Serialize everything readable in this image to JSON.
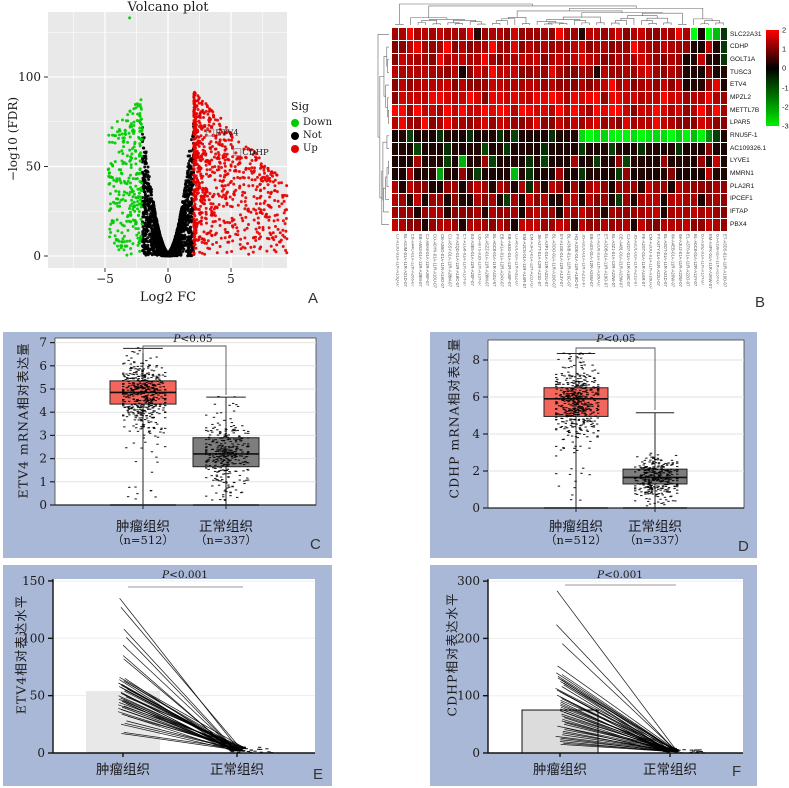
{
  "colors": {
    "panel_bg": "#aab8d8",
    "volcano_bg": "#e9e9e9",
    "grid_white": "#ffffff",
    "down_green": "#00cc00",
    "not_black": "#000000",
    "up_red": "#e60000",
    "box_red": "#f4655c",
    "box_gray": "#7d7d7d",
    "bar_e": "#e8e8e8",
    "bar_f": "#dcdcdc"
  },
  "chart_data": [
    {
      "panel_label": "A",
      "type": "scatter",
      "title": "Volcano plot",
      "xlabel": "Log2 FC",
      "ylabel": "−log10 (FDR)",
      "x_ticks": [
        -5,
        0,
        5
      ],
      "y_ticks": [
        0,
        50,
        100
      ],
      "xlim": [
        -9.5,
        9.4
      ],
      "ylim": [
        0,
        137
      ],
      "legend": {
        "title": "Sig",
        "items": [
          {
            "label": "Down",
            "color": "#00cc00"
          },
          {
            "label": "Not",
            "color": "#000000"
          },
          {
            "label": "Up",
            "color": "#e60000"
          }
        ]
      },
      "labeled_points": [
        {
          "name": "ETV4",
          "log2fc": 3.35,
          "neg_log10_fdr": 69
        },
        {
          "name": "CDHP",
          "log2fc": 5.5,
          "neg_log10_fdr": 58
        }
      ],
      "outlier_down": {
        "log2fc": -3.05,
        "neg_log10_fdr": 133
      },
      "point_counts": {
        "not": 2350,
        "down": 290,
        "up": 840
      }
    },
    {
      "panel_label": "B",
      "type": "heatmap",
      "row_labels": [
        "SLC22A31",
        "CDHP",
        "GOLT1A",
        "TUSC3",
        "ETV4",
        "MPZL2",
        "METTL7B",
        "LPAR5",
        "RNU5F-1",
        "AC109326.1",
        "LYVE1",
        "MMRN1",
        "PLA2R1",
        "IPCEF1",
        "IFTAP",
        "PBX4"
      ],
      "col_labels": [
        "CJ-A13O-01A-11R-A13Q-07",
        "BL-A3JM-01A-11R-A21D-07",
        "EB-A44O-01A-12R-A266-07",
        "EB-A553-01A-11R-A28M-07",
        "CJ-A8A9-01A-11R-A36F-07",
        "CU-A0YN-01A-11R-A10U-07",
        "CB-A3BO-01A-11R-A19O-07",
        "CJ-A5SY-01A-11R-A28M-07",
        "FY-A2QD-01A-11R-A18C-07",
        "EY-A1G8-01A-11R-A13Y-07",
        "E3-A3E5-01A-11R-A20F-07",
        "CB-A0T5-01B-11R-A13Y-07",
        "BL-A5ZZ-01A-11R-A28M-07",
        "BL-A0C8-01A-11R-A10U-07",
        "EB-A41A-01A-12R-A24X-07",
        "KB-A93G-01A-11R-A36F-07",
        "CJ-A6UL-01A-11R-A32Z-07",
        "EM-A2CN-01A-11R-A16R-07",
        "EM-A3FQ-01A-11R-A21D-07",
        "JB-A2YT-01A-12R-A21D-07",
        "EL-A3P1-01A-12R-A22U-07",
        "BL-A3OO-01A-11R-A19O-07",
        "EY-A1GE-01A-11R-A13Y-07",
        "BL-A3NB-01A-11R-A16C-07",
        "HQ-A2OE-01A-11R-A18O-07",
        "JB-A2OO-01A-11R-A21D-07",
        "EB-A4IS-01A-12R-A26W-07",
        "ET-A2O6-01A-11R-A18O-07",
        "ET-A3OB-01A-11R-A19O-07",
        "BL-A3Z1-01A-12R-A22W-07",
        "CE-A481-01A-21R-A23W-07",
        "CJ-A2O7-01A-11R-A18C-07",
        "JB-A2O1-01A-11R-A21D-07",
        "FE-A2ST-01A-11R-A16R-07",
        "EM-A2OO-01A-11R-A18O-07",
        "FY-A3TY-01A-11R-A22U-07",
        "BL-A3OT-01A-11R-A21D-07",
        "IM-A4EB-01A-11R-A26W-07",
        "IM-A3U2-01A-11R-A22W-07",
        "EL-A3T6-01A-11R-A22O-07",
        "BL-A0C8-01A-12R-A13Y-07",
        "BJ-A18Z-01A-11R-A13Y-07",
        "EM-A4FK-01A-11R-A26W-07",
        "BJ-A190-01A-11R-A13Y-07",
        "ET-A3DS-01A-11R-A19O-07"
      ],
      "colorbar_ticks": [
        "2",
        "1",
        "0",
        "-1",
        "-2",
        "-3"
      ],
      "value_levels": {
        "0": -3,
        "1": -2,
        "2": -1,
        "3": 0,
        "4": 1,
        "5": 2
      },
      "matrix_encoded": [
        "4454445444534444544444544344445444444454",
        "4445444544444544544444444544444454444444",
        "4544445444445444444544444544444445444443",
        "4444544443444544444445444443444444544443",
        "4444444544444544444444444444454444444443",
        "4555455545554555554555545555455554555554",
        "5545554555455555455554555545555545555454",
        "4544544544445454444544544445444544454444",
        "3323332333233323233332333000000000000000",
        "3332333233332332333323333233323332333323",
        "3334333231334233332323334332334233334333",
        "3343331334323333132333433233332433333433",
        "4344433443444344342434434344434443444344",
        "4434344343344432434443344344432434443444",
        "4443444344443444434444344444344444443444",
        "4444344443444444344444443444444434444444"
      ],
      "matrix_row_tails": [
        "03012",
        "33432",
        "34332",
        "33433",
        "33453",
        "44544",
        "45454",
        "45444",
        "00123",
        "33433",
        "34343",
        "33433",
        "44444",
        "43444",
        "44444",
        "44444"
      ]
    },
    {
      "panel_label": "C",
      "type": "box",
      "ylabel": "ETV4 mRNA相对表达量",
      "y_ticks": [
        0,
        1,
        2,
        3,
        4,
        5,
        6,
        7
      ],
      "ylim": [
        0,
        7.2
      ],
      "p_italic": "P",
      "p_rest": "<0.05",
      "groups": [
        {
          "label": "肿瘤组织",
          "n_label": "（n=512）",
          "n": 512,
          "box_color": "#f4655c",
          "q1": 4.35,
          "median": 4.85,
          "q3": 5.35,
          "whisker_low": 0,
          "whisker_high": 6.75,
          "points_mean": 4.85,
          "points_sd": 0.78
        },
        {
          "label": "正常组织",
          "n_label": "（n=337）",
          "n": 337,
          "box_color": "#7d7d7d",
          "q1": 1.65,
          "median": 2.2,
          "q3": 2.9,
          "whisker_low": 0,
          "whisker_high": 4.65,
          "points_mean": 2.25,
          "points_sd": 0.8
        }
      ]
    },
    {
      "panel_label": "D",
      "type": "box",
      "ylabel": "CDHP mRNA相对表达量",
      "y_ticks": [
        0,
        2,
        4,
        6,
        8
      ],
      "ylim": [
        0,
        8.9
      ],
      "p_italic": "P",
      "p_rest": "<0.05",
      "groups": [
        {
          "label": "肿瘤组织",
          "n_label": "（n=512）",
          "n": 512,
          "box_color": "#f4655c",
          "q1": 4.95,
          "median": 5.9,
          "q3": 6.5,
          "whisker_low": 0,
          "whisker_high": 8.35,
          "points_mean": 5.85,
          "points_sd": 1.0
        },
        {
          "label": "正常组织",
          "n_label": "（n=337）",
          "n": 337,
          "box_color": "#7d7d7d",
          "q1": 1.3,
          "median": 1.65,
          "q3": 2.1,
          "whisker_low": 0,
          "whisker_high": 5.15,
          "points_mean": 1.7,
          "points_sd": 0.6
        }
      ]
    },
    {
      "panel_label": "E",
      "type": "paired-line",
      "ylabel": "ETV4相对表达水平",
      "y_ticks": [
        0,
        50,
        100,
        150
      ],
      "ylim": [
        0,
        150
      ],
      "p_italic": "P",
      "p_rest": "<0.001",
      "categories": [
        "肿瘤组织",
        "正常组织"
      ],
      "bar_mean": 54,
      "tumor_values": [
        135,
        127,
        108,
        101,
        94,
        85,
        82,
        66,
        65,
        64,
        63,
        62,
        61,
        60,
        59,
        58,
        57,
        56,
        55,
        54,
        53,
        52,
        51,
        50,
        49,
        48,
        47,
        46,
        45,
        44,
        43,
        42,
        41,
        40,
        39,
        38,
        36,
        34,
        32,
        28,
        26,
        25,
        18,
        17
      ],
      "normal_values": [
        3,
        5,
        2,
        4,
        6,
        3,
        2,
        5,
        4,
        3,
        6,
        2,
        4,
        3,
        5,
        2,
        3,
        4,
        2,
        5,
        3,
        4,
        2,
        3,
        5,
        2,
        4,
        3,
        2,
        4,
        3,
        5,
        2,
        3,
        4,
        2,
        3,
        2,
        4,
        3,
        2,
        3,
        4,
        2
      ]
    },
    {
      "panel_label": "F",
      "type": "paired-line",
      "ylabel": "CDHP相对表达水平",
      "y_ticks": [
        0,
        100,
        200,
        300
      ],
      "ylim": [
        0,
        300
      ],
      "p_italic": "P",
      "p_rest": "<0.001",
      "categories": [
        "肿瘤组织",
        "正常组织"
      ],
      "bar_mean": 75,
      "tumor_values": [
        283,
        224,
        191,
        152,
        140,
        137,
        134,
        131,
        128,
        125,
        122,
        119,
        116,
        113,
        110,
        107,
        104,
        101,
        98,
        95,
        92,
        89,
        86,
        83,
        80,
        77,
        74,
        71,
        68,
        65,
        62,
        59,
        56,
        53,
        50,
        47,
        44,
        41,
        38,
        35,
        32,
        29,
        26,
        23,
        20,
        17,
        15
      ],
      "normal_values": [
        8,
        6,
        10,
        5,
        7,
        9,
        4,
        6,
        8,
        5,
        3,
        7,
        4,
        6,
        5,
        8,
        3,
        5,
        7,
        4,
        6,
        3,
        5,
        4,
        7,
        3,
        5,
        6,
        4,
        3,
        5,
        4,
        6,
        3,
        4,
        5,
        3,
        4,
        3,
        5,
        3,
        4,
        3,
        4,
        3,
        3,
        2
      ]
    }
  ]
}
